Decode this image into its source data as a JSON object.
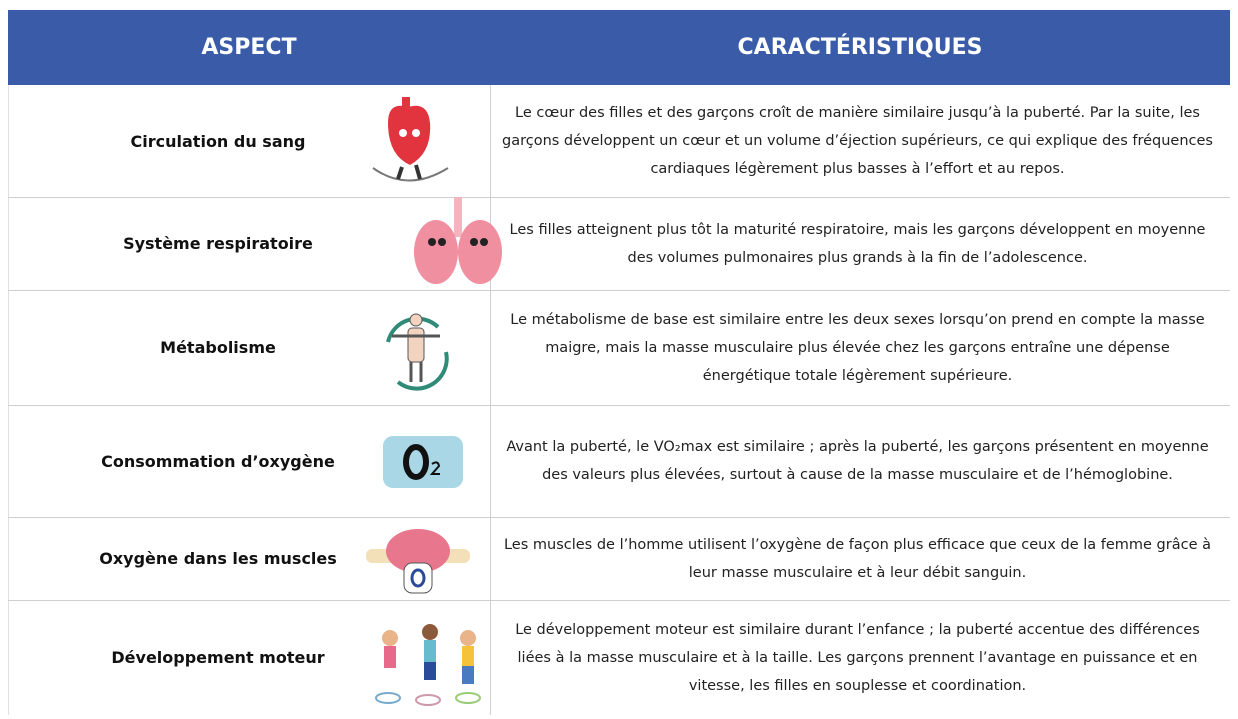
{
  "header": {
    "aspect": "ASPECT",
    "characteristics": "CARACTÉRISTIQUES"
  },
  "rows": [
    {
      "aspect": "Circulation du sang",
      "description": "Le cœur des filles et des garçons croît de manière similaire jusqu’à la puberté. Par la suite, les garçons développent un cœur et un volume d’éjection supérieurs, ce qui explique des fréquences cardiaques légèrement plus basses à l’effort et au repos."
    },
    {
      "aspect": "Système respiratoire",
      "description": "Les filles atteignent plus tôt la maturité respiratoire, mais les garçons développent en moyenne des volumes pulmonaires plus grands à la fin de l’adolescence."
    },
    {
      "aspect": "Métabolisme",
      "description": "Le métabolisme de base est similaire entre les deux sexes lorsqu’on prend en compte la masse maigre, mais la masse musculaire plus élevée chez les garçons entraîne une dépense énergétique totale légèrement supérieure."
    },
    {
      "aspect": "Consommation d’oxygène",
      "description": "Avant la puberté, le VO₂max est similaire ; après la puberté, les garçons présentent en moyenne des valeurs plus élevées, surtout à cause de la masse musculaire et de l’hémoglobine."
    },
    {
      "aspect": "Oxygène dans les muscles",
      "description": "Les muscles de l’homme utilisent l’oxygène de façon plus efficace que ceux de la femme grâce à leur masse musculaire et à leur débit sanguin."
    },
    {
      "aspect": "Développement moteur",
      "description": "Le développement moteur est similaire durant l’enfance ; la puberté accentue des différences liées à la masse musculaire et à la taille. Les garçons prennent l’avantage en puissance et en vitesse, les filles en souplesse et coordination."
    }
  ]
}
